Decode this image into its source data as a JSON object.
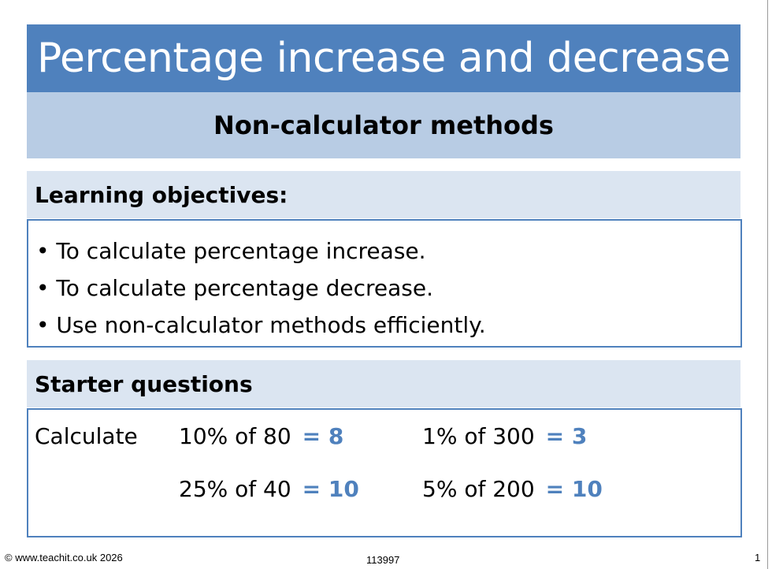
{
  "slide": {
    "title": "Percentage increase and decrease",
    "subtitle": "Non-calculator methods"
  },
  "objectives": {
    "heading": "Learning objectives:",
    "items": [
      "To calculate percentage increase.",
      "To calculate percentage decrease.",
      "Use non-calculator methods efficiently."
    ]
  },
  "starter": {
    "heading": "Starter questions",
    "label": "Calculate",
    "questions": [
      {
        "prompt": "10% of 80",
        "answer": "= 8"
      },
      {
        "prompt": "1% of 300",
        "answer": "= 3"
      },
      {
        "prompt": "25% of 40",
        "answer": "= 10"
      },
      {
        "prompt": "5% of 200",
        "answer": "= 10"
      }
    ]
  },
  "footer": {
    "copyright": "© www.teachit.co.uk 2026",
    "code": "113997",
    "page_number": "1"
  },
  "colors": {
    "title_bar": "#4f81bd",
    "subtitle_bar": "#b8cce4",
    "section_head": "#dbe5f1",
    "answer": "#4f81bd"
  }
}
